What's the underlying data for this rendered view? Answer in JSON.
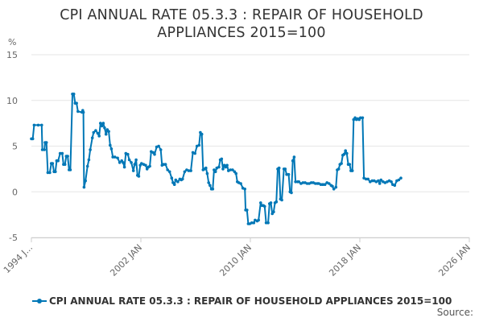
{
  "chart_data": {
    "type": "line",
    "title_lines": [
      "CPI ANNUAL RATE 05.3.3 : REPAIR OF HOUSEHOLD",
      "APPLIANCES 2015=100"
    ],
    "ylabel": "%",
    "ylim": [
      -5,
      15
    ],
    "y_ticks": [
      15,
      10,
      5,
      0,
      -5
    ],
    "xlim": [
      1994.0,
      2026.0
    ],
    "x_ticks": [
      {
        "value": 1994.0,
        "label": "1994 J..."
      },
      {
        "value": 2002.0,
        "label": "2002 JAN"
      },
      {
        "value": 2010.0,
        "label": "2010 JAN"
      },
      {
        "value": 2018.0,
        "label": "2018 JAN"
      },
      {
        "value": 2026.0,
        "label": "2026 JAN"
      }
    ],
    "grid": "horizontal",
    "legend": "bottom",
    "series": [
      {
        "name": "CPI ANNUAL RATE 05.3.3 : REPAIR OF HOUSEHOLD APPLIANCES 2015=100",
        "color": "#0077b6",
        "points": [
          [
            1994.0,
            5.8
          ],
          [
            1994.1,
            5.8
          ],
          [
            1994.2,
            7.3
          ],
          [
            1994.5,
            7.3
          ],
          [
            1994.75,
            7.3
          ],
          [
            1994.8,
            4.6
          ],
          [
            1994.95,
            4.6
          ],
          [
            1995.0,
            5.4
          ],
          [
            1995.1,
            5.4
          ],
          [
            1995.2,
            2.1
          ],
          [
            1995.35,
            2.1
          ],
          [
            1995.45,
            3.1
          ],
          [
            1995.55,
            3.1
          ],
          [
            1995.65,
            2.2
          ],
          [
            1995.75,
            2.2
          ],
          [
            1995.85,
            3.4
          ],
          [
            1995.95,
            3.4
          ],
          [
            1996.1,
            4.2
          ],
          [
            1996.25,
            4.2
          ],
          [
            1996.35,
            3.0
          ],
          [
            1996.45,
            3.0
          ],
          [
            1996.55,
            3.9
          ],
          [
            1996.65,
            3.9
          ],
          [
            1996.75,
            2.4
          ],
          [
            1996.85,
            2.4
          ],
          [
            1997.0,
            10.7
          ],
          [
            1997.1,
            10.7
          ],
          [
            1997.2,
            9.7
          ],
          [
            1997.3,
            9.7
          ],
          [
            1997.4,
            8.8
          ],
          [
            1997.7,
            8.7
          ],
          [
            1997.75,
            8.9
          ],
          [
            1997.8,
            8.7
          ],
          [
            1997.85,
            0.5
          ],
          [
            1997.95,
            1.2
          ],
          [
            1998.1,
            2.8
          ],
          [
            1998.2,
            3.5
          ],
          [
            1998.3,
            4.6
          ],
          [
            1998.45,
            5.9
          ],
          [
            1998.55,
            6.5
          ],
          [
            1998.7,
            6.7
          ],
          [
            1998.85,
            6.4
          ],
          [
            1998.95,
            6.1
          ],
          [
            1999.05,
            7.5
          ],
          [
            1999.15,
            7.2
          ],
          [
            1999.25,
            7.5
          ],
          [
            1999.35,
            7.0
          ],
          [
            1999.45,
            6.3
          ],
          [
            1999.55,
            6.8
          ],
          [
            1999.65,
            6.6
          ],
          [
            1999.75,
            5.1
          ],
          [
            1999.85,
            4.7
          ],
          [
            1999.95,
            3.8
          ],
          [
            2000.1,
            3.8
          ],
          [
            2000.3,
            3.7
          ],
          [
            2000.45,
            3.2
          ],
          [
            2000.6,
            3.4
          ],
          [
            2000.7,
            3.2
          ],
          [
            2000.8,
            2.7
          ],
          [
            2000.9,
            4.2
          ],
          [
            2001.05,
            4.1
          ],
          [
            2001.15,
            3.5
          ],
          [
            2001.3,
            3.2
          ],
          [
            2001.45,
            2.3
          ],
          [
            2001.55,
            3.0
          ],
          [
            2001.65,
            3.5
          ],
          [
            2001.75,
            1.8
          ],
          [
            2001.85,
            1.7
          ],
          [
            2001.95,
            2.9
          ],
          [
            2002.05,
            3.1
          ],
          [
            2002.2,
            3.0
          ],
          [
            2002.35,
            2.9
          ],
          [
            2002.45,
            2.5
          ],
          [
            2002.55,
            2.7
          ],
          [
            2002.65,
            2.8
          ],
          [
            2002.75,
            4.4
          ],
          [
            2002.9,
            4.3
          ],
          [
            2003.0,
            4.1
          ],
          [
            2003.15,
            4.9
          ],
          [
            2003.3,
            5.0
          ],
          [
            2003.45,
            4.6
          ],
          [
            2003.55,
            2.9
          ],
          [
            2003.65,
            3.0
          ],
          [
            2003.8,
            3.0
          ],
          [
            2003.95,
            2.4
          ],
          [
            2004.1,
            2.2
          ],
          [
            2004.25,
            1.5
          ],
          [
            2004.35,
            1.0
          ],
          [
            2004.45,
            0.8
          ],
          [
            2004.55,
            1.3
          ],
          [
            2004.7,
            1.1
          ],
          [
            2004.85,
            1.4
          ],
          [
            2004.95,
            1.3
          ],
          [
            2005.05,
            1.4
          ],
          [
            2005.2,
            2.2
          ],
          [
            2005.35,
            2.4
          ],
          [
            2005.5,
            2.3
          ],
          [
            2005.65,
            2.3
          ],
          [
            2005.8,
            4.3
          ],
          [
            2005.95,
            4.2
          ],
          [
            2006.1,
            5.0
          ],
          [
            2006.25,
            5.1
          ],
          [
            2006.35,
            6.5
          ],
          [
            2006.45,
            6.3
          ],
          [
            2006.55,
            2.4
          ],
          [
            2006.65,
            2.5
          ],
          [
            2006.75,
            2.6
          ],
          [
            2006.85,
            2.0
          ],
          [
            2006.95,
            1.0
          ],
          [
            2007.05,
            0.7
          ],
          [
            2007.15,
            0.3
          ],
          [
            2007.25,
            0.3
          ],
          [
            2007.35,
            2.4
          ],
          [
            2007.45,
            2.2
          ],
          [
            2007.55,
            2.6
          ],
          [
            2007.7,
            2.7
          ],
          [
            2007.8,
            3.5
          ],
          [
            2007.9,
            3.6
          ],
          [
            2008.0,
            2.5
          ],
          [
            2008.1,
            2.9
          ],
          [
            2008.2,
            2.7
          ],
          [
            2008.3,
            2.9
          ],
          [
            2008.4,
            2.3
          ],
          [
            2008.55,
            2.4
          ],
          [
            2008.7,
            2.4
          ],
          [
            2008.85,
            2.2
          ],
          [
            2008.95,
            2.0
          ],
          [
            2009.05,
            1.1
          ],
          [
            2009.15,
            1.0
          ],
          [
            2009.3,
            0.9
          ],
          [
            2009.45,
            0.4
          ],
          [
            2009.6,
            0.3
          ],
          [
            2009.65,
            -2.0
          ],
          [
            2009.75,
            -2.0
          ],
          [
            2009.85,
            -3.5
          ],
          [
            2009.95,
            -3.5
          ],
          [
            2010.1,
            -3.4
          ],
          [
            2010.25,
            -3.4
          ],
          [
            2010.35,
            -3.1
          ],
          [
            2010.5,
            -3.2
          ],
          [
            2010.6,
            -3.1
          ],
          [
            2010.75,
            -1.2
          ],
          [
            2010.85,
            -1.5
          ],
          [
            2010.95,
            -1.5
          ],
          [
            2011.05,
            -1.6
          ],
          [
            2011.15,
            -3.4
          ],
          [
            2011.3,
            -3.4
          ],
          [
            2011.4,
            -1.3
          ],
          [
            2011.5,
            -1.2
          ],
          [
            2011.6,
            -2.4
          ],
          [
            2011.7,
            -2.2
          ],
          [
            2011.8,
            -1.2
          ],
          [
            2011.9,
            -1.1
          ],
          [
            2012.0,
            2.5
          ],
          [
            2012.1,
            2.6
          ],
          [
            2012.2,
            -0.8
          ],
          [
            2012.3,
            -0.9
          ],
          [
            2012.45,
            2.5
          ],
          [
            2012.55,
            2.5
          ],
          [
            2012.65,
            1.9
          ],
          [
            2012.8,
            1.9
          ],
          [
            2012.9,
            0.0
          ],
          [
            2013.0,
            -0.1
          ],
          [
            2013.1,
            3.4
          ],
          [
            2013.2,
            3.8
          ],
          [
            2013.3,
            1.1
          ],
          [
            2013.45,
            1.1
          ],
          [
            2013.55,
            1.1
          ],
          [
            2013.7,
            0.9
          ],
          [
            2013.85,
            1.0
          ],
          [
            2014.0,
            1.0
          ],
          [
            2014.15,
            0.9
          ],
          [
            2014.3,
            0.9
          ],
          [
            2014.45,
            1.0
          ],
          [
            2014.6,
            1.0
          ],
          [
            2014.75,
            0.9
          ],
          [
            2014.9,
            0.9
          ],
          [
            2015.0,
            0.9
          ],
          [
            2015.15,
            0.8
          ],
          [
            2015.3,
            0.8
          ],
          [
            2015.45,
            0.8
          ],
          [
            2015.6,
            1.0
          ],
          [
            2015.75,
            0.9
          ],
          [
            2015.9,
            0.7
          ],
          [
            2016.0,
            0.6
          ],
          [
            2016.1,
            0.3
          ],
          [
            2016.25,
            0.5
          ],
          [
            2016.35,
            2.4
          ],
          [
            2016.45,
            2.5
          ],
          [
            2016.55,
            3.0
          ],
          [
            2016.65,
            3.1
          ],
          [
            2016.75,
            4.0
          ],
          [
            2016.85,
            4.1
          ],
          [
            2016.95,
            4.5
          ],
          [
            2017.05,
            4.2
          ],
          [
            2017.15,
            3.0
          ],
          [
            2017.25,
            3.0
          ],
          [
            2017.35,
            2.3
          ],
          [
            2017.45,
            2.3
          ],
          [
            2017.55,
            7.9
          ],
          [
            2017.65,
            8.1
          ],
          [
            2017.75,
            7.9
          ],
          [
            2017.85,
            8.0
          ],
          [
            2017.95,
            7.9
          ],
          [
            2018.05,
            8.1
          ],
          [
            2018.2,
            8.1
          ],
          [
            2018.3,
            1.5
          ],
          [
            2018.45,
            1.4
          ],
          [
            2018.6,
            1.4
          ],
          [
            2018.75,
            1.1
          ],
          [
            2018.9,
            1.2
          ],
          [
            2019.05,
            1.2
          ],
          [
            2019.2,
            1.1
          ],
          [
            2019.35,
            1.2
          ],
          [
            2019.45,
            0.9
          ],
          [
            2019.55,
            1.3
          ],
          [
            2019.7,
            1.1
          ],
          [
            2019.85,
            1.0
          ],
          [
            2020.0,
            1.1
          ],
          [
            2020.15,
            1.2
          ],
          [
            2020.3,
            1.1
          ],
          [
            2020.4,
            0.8
          ],
          [
            2020.55,
            0.7
          ],
          [
            2020.7,
            1.2
          ],
          [
            2020.85,
            1.3
          ],
          [
            2021.0,
            1.5
          ]
        ]
      }
    ]
  },
  "legend": {
    "label": "CPI ANNUAL RATE 05.3.3 : REPAIR OF HOUSEHOLD APPLIANCES 2015=100"
  },
  "source": {
    "label": "Source:"
  },
  "colors": {
    "line": "#0077b6",
    "grid": "#e6e6e6",
    "axis_text": "#666666"
  }
}
